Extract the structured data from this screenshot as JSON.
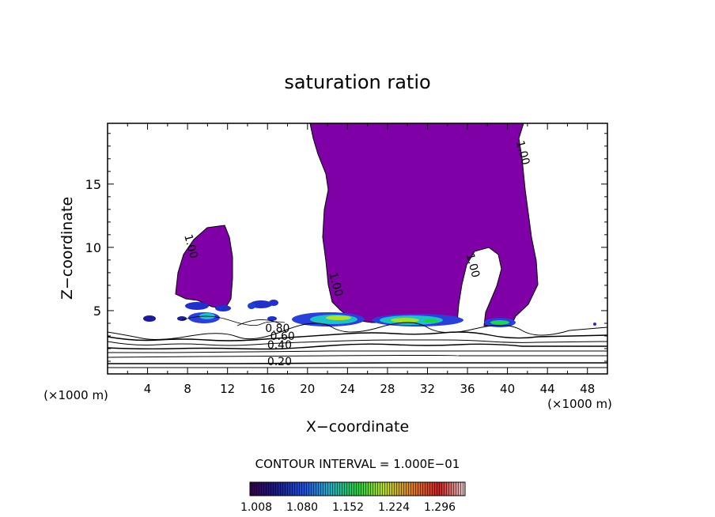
{
  "chart_data": {
    "type": "contour",
    "title": "saturation ratio",
    "xlabel": "X−coordinate",
    "ylabel": "Z−coordinate",
    "x_unit_left": "(×1000 m)",
    "x_unit_right": "(×1000 m)",
    "xlim": [
      0,
      50
    ],
    "ylim": [
      0,
      19.8
    ],
    "x_ticks": [
      4,
      8,
      12,
      16,
      20,
      24,
      28,
      32,
      36,
      40,
      44,
      48
    ],
    "y_ticks": [
      5,
      10,
      15
    ],
    "contour_labels": [
      {
        "text": "1.00",
        "x": 8.0,
        "z": 10.0
      },
      {
        "text": "1.00",
        "x": 22.5,
        "z": 7.0
      },
      {
        "text": "1.00",
        "x": 36.2,
        "z": 8.5
      },
      {
        "text": "1.00",
        "x": 41.2,
        "z": 17.4
      },
      {
        "text": "0.80",
        "x": 17.0,
        "z": 3.3
      },
      {
        "text": "0.60",
        "x": 17.5,
        "z": 2.7
      },
      {
        "text": "0.40",
        "x": 17.2,
        "z": 2.0
      },
      {
        "text": "0.20",
        "x": 17.2,
        "z": 0.7
      }
    ],
    "contour_interval_text": "CONTOUR INTERVAL = 1.000E−01",
    "colorbar": {
      "tick_labels": [
        "1.008",
        "1.080",
        "1.152",
        "1.224",
        "1.296"
      ],
      "colors": [
        "#3a004a",
        "#1c1a8a",
        "#2050e0",
        "#20b0c8",
        "#20d040",
        "#b8e020",
        "#e08020",
        "#d02020",
        "#e0d0d0"
      ]
    },
    "colors": {
      "supersat_fill": "#8000a8",
      "contour_line": "#000000"
    }
  }
}
